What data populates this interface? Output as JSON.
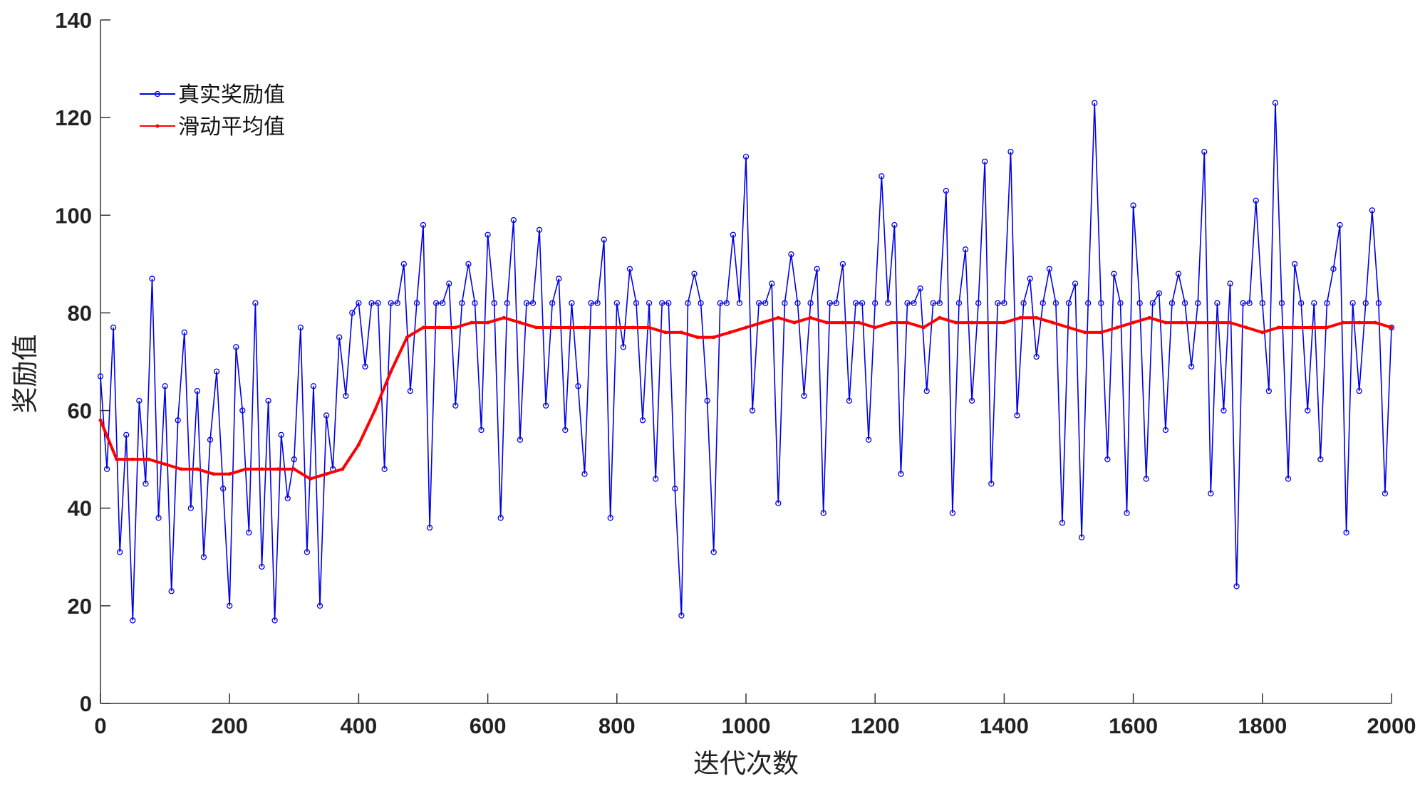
{
  "chart_data": {
    "type": "line",
    "xlabel": "迭代次数",
    "ylabel": "奖励值",
    "xlim": [
      0,
      2000
    ],
    "ylim": [
      0,
      140
    ],
    "xticks": [
      0,
      200,
      400,
      600,
      800,
      1000,
      1200,
      1400,
      1600,
      1800,
      2000
    ],
    "yticks": [
      0,
      20,
      40,
      60,
      80,
      100,
      120,
      140
    ],
    "legend": "upper-left",
    "series": [
      {
        "name": "真实奖励值",
        "color": "#0000e6",
        "marker": "circle",
        "x": [
          0,
          10,
          20,
          30,
          40,
          50,
          60,
          70,
          80,
          90,
          100,
          110,
          120,
          130,
          140,
          150,
          160,
          170,
          180,
          190,
          200,
          210,
          220,
          230,
          240,
          250,
          260,
          270,
          280,
          290,
          300,
          310,
          320,
          330,
          340,
          350,
          360,
          370,
          380,
          390,
          400,
          410,
          420,
          430,
          440,
          450,
          460,
          470,
          480,
          490,
          500,
          510,
          520,
          530,
          540,
          550,
          560,
          570,
          580,
          590,
          600,
          610,
          620,
          630,
          640,
          650,
          660,
          670,
          680,
          690,
          700,
          710,
          720,
          730,
          740,
          750,
          760,
          770,
          780,
          790,
          800,
          810,
          820,
          830,
          840,
          850,
          860,
          870,
          880,
          890,
          900,
          910,
          920,
          930,
          940,
          950,
          960,
          970,
          980,
          990,
          1000,
          1010,
          1020,
          1030,
          1040,
          1050,
          1060,
          1070,
          1080,
          1090,
          1100,
          1110,
          1120,
          1130,
          1140,
          1150,
          1160,
          1170,
          1180,
          1190,
          1200,
          1210,
          1220,
          1230,
          1240,
          1250,
          1260,
          1270,
          1280,
          1290,
          1300,
          1310,
          1320,
          1330,
          1340,
          1350,
          1360,
          1370,
          1380,
          1390,
          1400,
          1410,
          1420,
          1430,
          1440,
          1450,
          1460,
          1470,
          1480,
          1490,
          1500,
          1510,
          1520,
          1530,
          1540,
          1550,
          1560,
          1570,
          1580,
          1590,
          1600,
          1610,
          1620,
          1630,
          1640,
          1650,
          1660,
          1670,
          1680,
          1690,
          1700,
          1710,
          1720,
          1730,
          1740,
          1750,
          1760,
          1770,
          1780,
          1790,
          1800,
          1810,
          1820,
          1830,
          1840,
          1850,
          1860,
          1870,
          1880,
          1890,
          1900,
          1910,
          1920,
          1930,
          1940,
          1950,
          1960,
          1970,
          1980,
          1990,
          2000
        ],
        "values": [
          67,
          48,
          77,
          31,
          55,
          17,
          62,
          45,
          87,
          38,
          65,
          23,
          58,
          76,
          40,
          64,
          30,
          54,
          68,
          44,
          20,
          73,
          60,
          35,
          82,
          28,
          62,
          17,
          55,
          42,
          50,
          77,
          31,
          65,
          20,
          59,
          48,
          75,
          63,
          80,
          82,
          69,
          82,
          82,
          48,
          82,
          82,
          90,
          64,
          82,
          98,
          36,
          82,
          82,
          86,
          61,
          82,
          90,
          82,
          56,
          96,
          82,
          38,
          82,
          99,
          54,
          82,
          82,
          97,
          61,
          82,
          87,
          56,
          82,
          65,
          47,
          82,
          82,
          95,
          38,
          82,
          73,
          89,
          82,
          58,
          82,
          46,
          82,
          82,
          44,
          18,
          82,
          88,
          82,
          62,
          31,
          82,
          82,
          96,
          82,
          112,
          60,
          82,
          82,
          86,
          41,
          82,
          92,
          82,
          63,
          82,
          89,
          39,
          82,
          82,
          90,
          62,
          82,
          82,
          54,
          82,
          108,
          82,
          98,
          47,
          82,
          82,
          85,
          64,
          82,
          82,
          105,
          39,
          82,
          93,
          62,
          82,
          111,
          45,
          82,
          82,
          113,
          59,
          82,
          87,
          71,
          82,
          89,
          82,
          37,
          82,
          86,
          34,
          82,
          123,
          82,
          50,
          88,
          82,
          39,
          102,
          82,
          46,
          82,
          84,
          56,
          82,
          88,
          82,
          69,
          82,
          113,
          43,
          82,
          60,
          86,
          24,
          82,
          82,
          103,
          82,
          64,
          123,
          82,
          46,
          90,
          82,
          60,
          82,
          50,
          82,
          89,
          98,
          35,
          82,
          64,
          82,
          101,
          82,
          43,
          77
        ]
      },
      {
        "name": "滑动平均值",
        "color": "#ff0000",
        "marker": "dot",
        "x": [
          0,
          25,
          50,
          75,
          100,
          125,
          150,
          175,
          200,
          225,
          250,
          275,
          300,
          325,
          350,
          375,
          400,
          425,
          450,
          475,
          500,
          525,
          550,
          575,
          600,
          625,
          650,
          675,
          700,
          725,
          750,
          775,
          800,
          825,
          850,
          875,
          900,
          925,
          950,
          975,
          1000,
          1025,
          1050,
          1075,
          1100,
          1125,
          1150,
          1175,
          1200,
          1225,
          1250,
          1275,
          1300,
          1325,
          1350,
          1375,
          1400,
          1425,
          1450,
          1475,
          1500,
          1525,
          1550,
          1575,
          1600,
          1625,
          1650,
          1675,
          1700,
          1725,
          1750,
          1775,
          1800,
          1825,
          1850,
          1875,
          1900,
          1925,
          1950,
          1975,
          2000
        ],
        "values": [
          58,
          50,
          50,
          50,
          49,
          48,
          48,
          47,
          47,
          48,
          48,
          48,
          48,
          46,
          47,
          48,
          53,
          60,
          68,
          75,
          77,
          77,
          77,
          78,
          78,
          79,
          78,
          77,
          77,
          77,
          77,
          77,
          77,
          77,
          77,
          76,
          76,
          75,
          75,
          76,
          77,
          78,
          79,
          78,
          79,
          78,
          78,
          78,
          77,
          78,
          78,
          77,
          79,
          78,
          78,
          78,
          78,
          79,
          79,
          78,
          77,
          76,
          76,
          77,
          78,
          79,
          78,
          78,
          78,
          78,
          78,
          77,
          76,
          77,
          77,
          77,
          77,
          78,
          78,
          78,
          77
        ]
      }
    ]
  }
}
